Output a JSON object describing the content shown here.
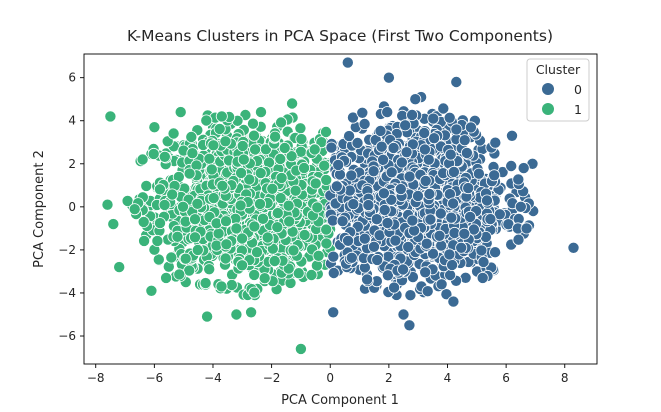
{
  "chart_data": {
    "type": "scatter",
    "title": "K-Means Clusters in PCA Space (First Two Components)",
    "xlabel": "PCA Component 1",
    "ylabel": "PCA Component 2",
    "xlim": [
      -8.4,
      9.1
    ],
    "ylim": [
      -7.3,
      7.1
    ],
    "xticks": [
      -8,
      -6,
      -4,
      -2,
      0,
      2,
      4,
      6,
      8
    ],
    "yticks": [
      -6,
      -4,
      -2,
      0,
      2,
      4,
      6
    ],
    "grid": false,
    "legend": {
      "title": "Cluster",
      "placement": "top-right",
      "entries": [
        {
          "label": "0",
          "color": "#3b6a94"
        },
        {
          "label": "1",
          "color": "#3ab37a"
        }
      ]
    },
    "series": [
      {
        "name": "0",
        "color": "#3b6a94",
        "approx_count": 1500,
        "x_range": [
          0,
          8.3
        ],
        "y_range": [
          -5.6,
          6.7
        ],
        "center": [
          2.8,
          0.3
        ],
        "spread": [
          1.6,
          1.9
        ],
        "outliers": [
          [
            0.6,
            6.7
          ],
          [
            2.0,
            6.0
          ],
          [
            4.3,
            5.8
          ],
          [
            3.1,
            5.1
          ],
          [
            2.9,
            5.0
          ],
          [
            0.1,
            -4.9
          ],
          [
            2.7,
            -5.5
          ],
          [
            2.5,
            -5.0
          ],
          [
            4.2,
            -4.4
          ],
          [
            3.8,
            -3.6
          ],
          [
            5.2,
            -3.3
          ],
          [
            6.4,
            -1.0
          ],
          [
            6.7,
            -1.0
          ],
          [
            6.9,
            2.0
          ],
          [
            6.6,
            1.8
          ],
          [
            6.2,
            3.3
          ],
          [
            8.3,
            -1.9
          ],
          [
            6.5,
            0.0
          ]
        ]
      },
      {
        "name": "1",
        "color": "#3ab37a",
        "approx_count": 1500,
        "x_range": [
          -7.6,
          0
        ],
        "y_range": [
          -6.6,
          4.8
        ],
        "center": [
          -2.8,
          0.2
        ],
        "spread": [
          1.6,
          1.8
        ],
        "outliers": [
          [
            -7.5,
            4.2
          ],
          [
            -7.6,
            0.1
          ],
          [
            -7.2,
            -2.8
          ],
          [
            -6.0,
            3.7
          ],
          [
            -5.1,
            4.4
          ],
          [
            -6.1,
            -3.9
          ],
          [
            -4.2,
            -5.1
          ],
          [
            -3.2,
            -5.0
          ],
          [
            -2.7,
            -4.9
          ],
          [
            -1.0,
            -6.6
          ],
          [
            -5.6,
            -3.3
          ],
          [
            -7.4,
            -0.8
          ],
          [
            -6.4,
            2.2
          ],
          [
            -1.3,
            4.8
          ],
          [
            -3.7,
            4.2
          ]
        ]
      }
    ]
  }
}
